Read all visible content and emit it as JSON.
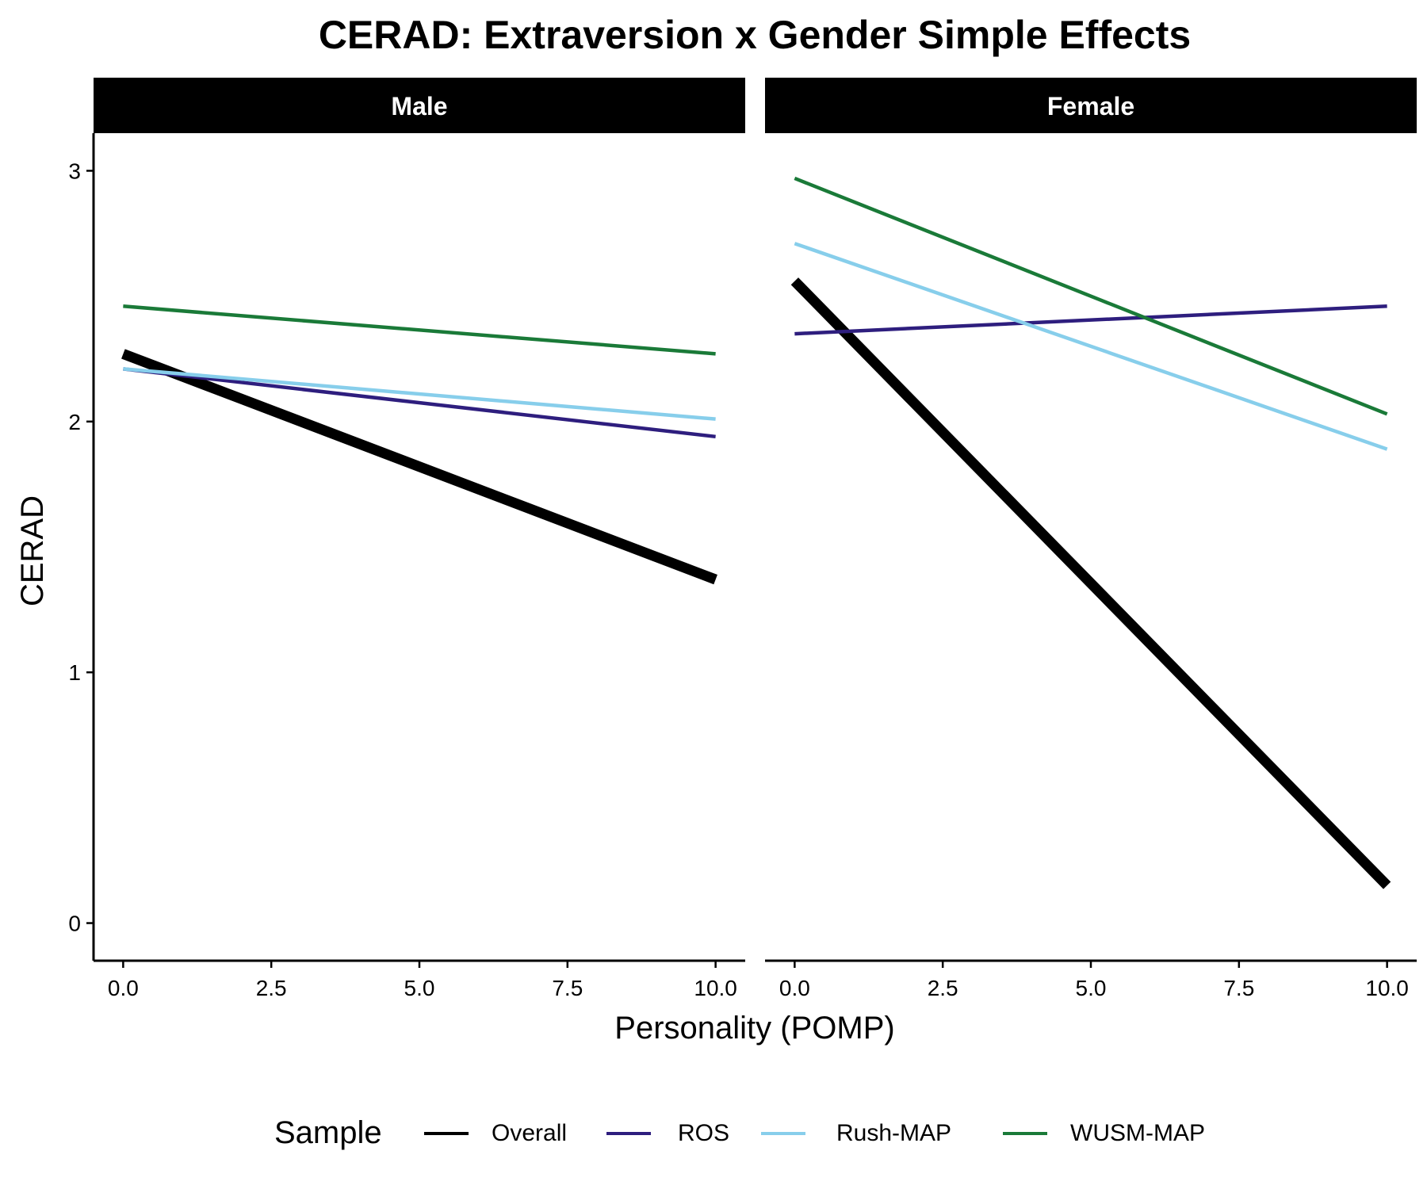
{
  "chart_data": {
    "type": "line",
    "title": "CERAD: Extraversion x Gender Simple Effects",
    "xlabel": "Personality (POMP)",
    "ylabel": "CERAD",
    "xlim": [
      -0.5,
      10.5
    ],
    "ylim": [
      -0.15,
      3.15
    ],
    "x_ticks": [
      "0.0",
      "2.5",
      "5.0",
      "7.5",
      "10.0"
    ],
    "y_ticks": [
      "0",
      "1",
      "2",
      "3"
    ],
    "grid": false,
    "legend": {
      "title": "Sample",
      "position": "bottom",
      "entries": [
        "Overall",
        "ROS",
        "Rush-MAP",
        "WUSM-MAP"
      ]
    },
    "facets": [
      {
        "label": "Male",
        "series": [
          {
            "name": "Overall",
            "color": "#000000",
            "x": [
              0,
              10
            ],
            "y": [
              2.27,
              1.37
            ]
          },
          {
            "name": "ROS",
            "color": "#2e1e7e",
            "x": [
              0,
              10
            ],
            "y": [
              2.21,
              1.94
            ]
          },
          {
            "name": "Rush-MAP",
            "color": "#87ceeb",
            "x": [
              0,
              10
            ],
            "y": [
              2.21,
              2.01
            ]
          },
          {
            "name": "WUSM-MAP",
            "color": "#1a7a38",
            "x": [
              0,
              10
            ],
            "y": [
              2.46,
              2.27
            ]
          }
        ]
      },
      {
        "label": "Female",
        "series": [
          {
            "name": "Overall",
            "color": "#000000",
            "x": [
              0,
              10
            ],
            "y": [
              2.56,
              0.15
            ]
          },
          {
            "name": "ROS",
            "color": "#2e1e7e",
            "x": [
              0,
              10
            ],
            "y": [
              2.35,
              2.46
            ]
          },
          {
            "name": "Rush-MAP",
            "color": "#87ceeb",
            "x": [
              0,
              10
            ],
            "y": [
              2.71,
              1.89
            ]
          },
          {
            "name": "WUSM-MAP",
            "color": "#1a7a38",
            "x": [
              0,
              10
            ],
            "y": [
              2.97,
              2.03
            ]
          }
        ]
      }
    ]
  }
}
